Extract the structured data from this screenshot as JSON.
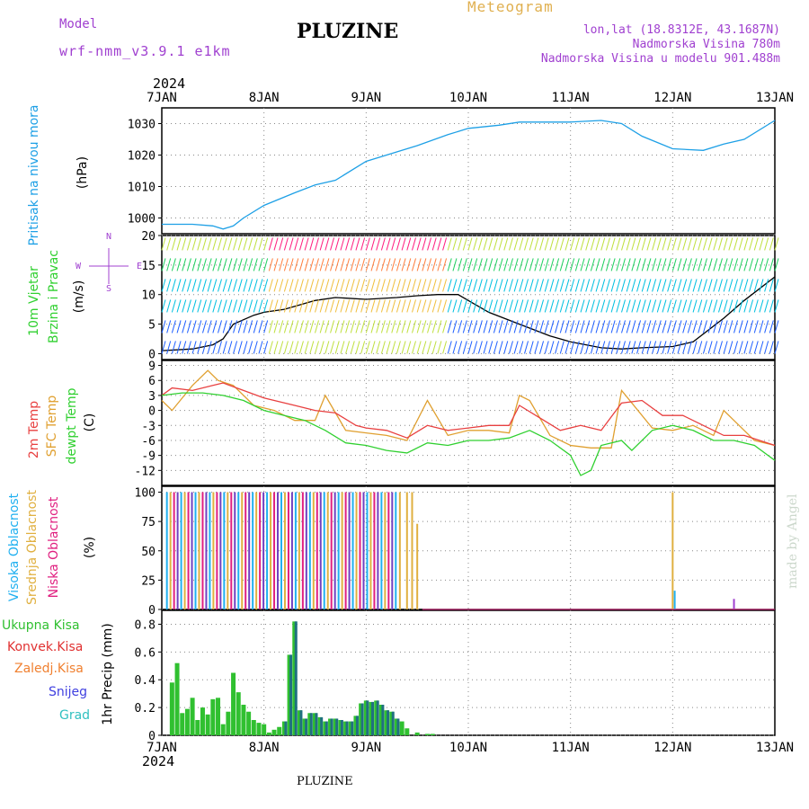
{
  "header": {
    "model_label": "Model",
    "model_name": "wrf-nmm_v3.9.1 e1km",
    "station": "PLUZINE",
    "meteogram": "Meteogram",
    "lonlat": "lon,lat (18.8312E, 43.1687N)",
    "elevation": "Nadmorska Visina 780m",
    "model_elevation": "Nadmorska Visina u modelu 901.488m",
    "year_top": "2024",
    "year_bottom": "2024",
    "footer_station": "PLUZINE",
    "credit": "made by Angel"
  },
  "colors": {
    "pressure": "#1ea0e6",
    "temp2m": "#e84040",
    "sfc": "#e0a030",
    "dewpt": "#30d030",
    "high_cloud": "#20b0f0",
    "mid_cloud": "#e0b040",
    "low_cloud": "#e02080",
    "precip_total": "#30c030",
    "precip_conv": "#e03030",
    "precip_frozen": "#f08030",
    "snow": "#4040e0",
    "graupel": "#30c0c0",
    "purple_label": "#a040d0"
  },
  "chart_data": [
    {
      "id": "pressure",
      "type": "line",
      "ylabel": [
        "Pritisak na nivou mora",
        "(hPa)"
      ],
      "x_ticks": [
        "7JAN",
        "8JAN",
        "9JAN",
        "10JAN",
        "11JAN",
        "12JAN",
        "13JAN"
      ],
      "ylim": [
        995,
        1035
      ],
      "y_ticks": [
        1000,
        1010,
        1020,
        1030
      ],
      "series": [
        {
          "x": [
            0,
            0.3,
            0.5,
            0.6,
            0.7,
            0.8,
            1.0,
            1.3,
            1.5,
            1.7,
            2.0,
            2.3,
            2.5,
            2.8,
            3.0,
            3.3,
            3.5,
            4.0,
            4.3,
            4.5,
            4.7,
            5.0,
            5.3,
            5.5,
            5.7,
            6.0
          ],
          "y": [
            998,
            998,
            997.5,
            996.5,
            997.5,
            1000,
            1004,
            1008,
            1010.5,
            1012,
            1018,
            1021,
            1023,
            1026.5,
            1028.5,
            1029.5,
            1030.5,
            1030.5,
            1031,
            1030,
            1026,
            1022,
            1021.5,
            1023.5,
            1025,
            1031
          ]
        }
      ]
    },
    {
      "id": "wind",
      "type": "line",
      "ylabel": [
        "10m Vjetar",
        "Brzina i Pravac",
        "(m/s)"
      ],
      "compass": [
        "N",
        "W",
        "E",
        "S"
      ],
      "ylim": [
        -1,
        20
      ],
      "y_ticks": [
        0,
        5,
        10,
        15,
        20
      ],
      "series": [
        {
          "name": "speed",
          "x": [
            0,
            0.3,
            0.5,
            0.6,
            0.7,
            0.9,
            1.0,
            1.2,
            1.5,
            1.7,
            2.0,
            2.3,
            2.5,
            2.7,
            2.9,
            3.0,
            3.2,
            3.5,
            3.8,
            4.0,
            4.3,
            4.5,
            4.7,
            5.0,
            5.2,
            5.5,
            5.7,
            6.0
          ],
          "y": [
            0.5,
            0.8,
            1.5,
            2.5,
            5,
            6.5,
            7,
            7.5,
            9,
            9.5,
            9.2,
            9.5,
            9.8,
            10,
            10,
            9,
            7,
            5,
            3,
            2,
            1,
            0.8,
            1,
            1.2,
            2,
            6,
            9,
            13
          ]
        }
      ]
    },
    {
      "id": "temp",
      "type": "line",
      "ylabel": [
        "2m Temp",
        "SFC Temp",
        "dewpt Temp",
        "(C)"
      ],
      "ylim": [
        -15,
        10
      ],
      "y_ticks": [
        9,
        6,
        3,
        0,
        -3,
        -6,
        -9,
        -12
      ],
      "series": [
        {
          "name": "2m Temp",
          "x": [
            0,
            0.1,
            0.3,
            0.5,
            0.6,
            0.8,
            1.0,
            1.3,
            1.5,
            1.7,
            1.9,
            2.0,
            2.2,
            2.4,
            2.6,
            2.8,
            3.0,
            3.2,
            3.4,
            3.5,
            3.7,
            3.9,
            4.1,
            4.3,
            4.5,
            4.7,
            4.9,
            5.1,
            5.3,
            5.5,
            5.7,
            6.0
          ],
          "y": [
            3,
            4.5,
            4,
            5,
            5.5,
            4,
            2.5,
            1,
            0,
            -0.5,
            -3,
            -3.5,
            -4,
            -5.5,
            -3,
            -4,
            -3.5,
            -3,
            -3,
            1,
            -1.5,
            -4,
            -3,
            -4,
            1.5,
            2,
            -1,
            -1,
            -3,
            -5,
            -5,
            -7
          ]
        },
        {
          "name": "SFC Temp",
          "x": [
            0,
            0.1,
            0.3,
            0.45,
            0.55,
            0.7,
            0.9,
            1.1,
            1.3,
            1.5,
            1.6,
            1.8,
            2.0,
            2.2,
            2.4,
            2.6,
            2.8,
            3.0,
            3.2,
            3.4,
            3.5,
            3.6,
            3.8,
            4.0,
            4.2,
            4.4,
            4.5,
            4.6,
            4.8,
            5.0,
            5.2,
            5.4,
            5.5,
            5.6,
            5.8,
            6.0
          ],
          "y": [
            2,
            0,
            5,
            8,
            6,
            5,
            1,
            0,
            -2,
            -2,
            3,
            -4,
            -4.5,
            -5,
            -6,
            2,
            -5,
            -4,
            -4,
            -4.5,
            3,
            2,
            -5,
            -7,
            -7.5,
            -7.5,
            4,
            1.5,
            -3.5,
            -4,
            -3,
            -5,
            0,
            -2,
            -6,
            -7
          ]
        },
        {
          "name": "dewpt Temp",
          "x": [
            0,
            0.2,
            0.4,
            0.6,
            0.8,
            1.0,
            1.2,
            1.4,
            1.6,
            1.8,
            2.0,
            2.2,
            2.4,
            2.6,
            2.8,
            3.0,
            3.2,
            3.4,
            3.6,
            3.8,
            4.0,
            4.1,
            4.2,
            4.3,
            4.5,
            4.6,
            4.8,
            5.0,
            5.2,
            5.4,
            5.6,
            5.8,
            6.0
          ],
          "y": [
            3,
            3.5,
            3.5,
            3,
            2,
            0,
            -1,
            -2,
            -4,
            -6.5,
            -7,
            -8,
            -8.5,
            -6.5,
            -7,
            -6,
            -6,
            -5.5,
            -4,
            -6,
            -9,
            -13,
            -12,
            -7,
            -6,
            -8,
            -4,
            -3,
            -4,
            -6,
            -6,
            -7,
            -10
          ]
        }
      ]
    },
    {
      "id": "cloud",
      "type": "bar",
      "ylabel": [
        "Visoka Oblacnost",
        "Srednja Oblacnost",
        "Niska Oblacnost",
        "(%)"
      ],
      "ylim": [
        0,
        105
      ],
      "y_ticks": [
        0,
        25,
        50,
        75,
        100
      ],
      "bars_high": {
        "x_range": [
          0.05,
          2.3
        ],
        "values": [
          100
        ]
      },
      "bars_mid": {
        "x_range": [
          0.05,
          2.5
        ],
        "values": [
          100,
          73
        ]
      },
      "special": [
        {
          "x": 5.0,
          "value": 100
        },
        {
          "x": 5.02,
          "value": 16
        },
        {
          "x": 5.6,
          "value": 9
        }
      ]
    },
    {
      "id": "precip",
      "type": "bar",
      "ylabel": [
        "1hr Precip (mm)"
      ],
      "legend": [
        "Ukupna Kisa",
        "Konvek.Kisa",
        "Zaledj.Kisa",
        "Snijeg",
        "Grad"
      ],
      "ylim": [
        0,
        0.9
      ],
      "y_ticks": [
        0,
        0.2,
        0.4,
        0.6,
        0.8
      ],
      "x": [
        0.1,
        0.15,
        0.2,
        0.25,
        0.3,
        0.35,
        0.4,
        0.45,
        0.5,
        0.55,
        0.6,
        0.65,
        0.7,
        0.75,
        0.8,
        0.85,
        0.9,
        0.95,
        1.0,
        1.05,
        1.1,
        1.15,
        1.2,
        1.25,
        1.3,
        1.35,
        1.4,
        1.45,
        1.5,
        1.55,
        1.6,
        1.65,
        1.7,
        1.75,
        1.8,
        1.85,
        1.9,
        1.95,
        2.0,
        2.05,
        2.1,
        2.15,
        2.2,
        2.25,
        2.3,
        2.35,
        2.4,
        2.5,
        2.6,
        2.65
      ],
      "values": [
        0.38,
        0.52,
        0.16,
        0.19,
        0.27,
        0.11,
        0.2,
        0.15,
        0.26,
        0.27,
        0.08,
        0.17,
        0.45,
        0.31,
        0.22,
        0.17,
        0.11,
        0.09,
        0.08,
        0.02,
        0.04,
        0.06,
        0.1,
        0.58,
        0.82,
        0.18,
        0.12,
        0.16,
        0.16,
        0.13,
        0.1,
        0.12,
        0.12,
        0.11,
        0.1,
        0.1,
        0.14,
        0.23,
        0.25,
        0.24,
        0.25,
        0.22,
        0.18,
        0.17,
        0.12,
        0.1,
        0.05,
        0.02,
        0.01,
        0.01
      ]
    }
  ]
}
